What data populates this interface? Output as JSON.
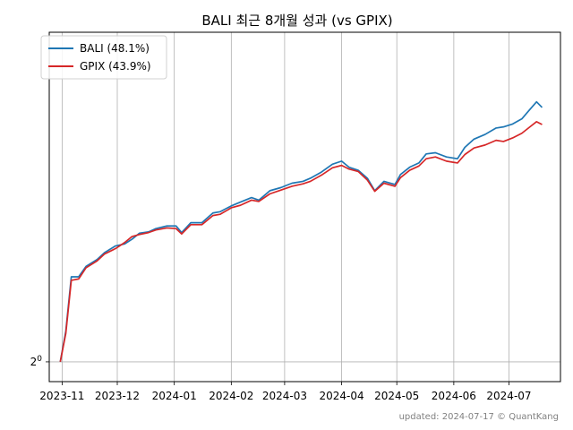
{
  "chart_data": {
    "type": "line",
    "title": "BALI 최근 8개월 성과 (vs GPIX)",
    "xlabel": "",
    "ylabel": "",
    "y_scale": "log2",
    "y_ticks": [
      {
        "value": 1.0,
        "label_base": "2",
        "label_exp": "0"
      }
    ],
    "x_tick_labels": [
      "2023-11",
      "2023-12",
      "2024-01",
      "2024-02",
      "2024-03",
      "2024-04",
      "2024-05",
      "2024-06",
      "2024-07"
    ],
    "x_ticks": [
      "2023-11-01",
      "2023-12-01",
      "2024-01-01",
      "2024-02-01",
      "2024-03-01",
      "2024-04-01",
      "2024-05-01",
      "2024-06-01",
      "2024-07-01"
    ],
    "xlim": [
      "2023-10-25",
      "2024-07-29"
    ],
    "ylim": [
      0.975,
      1.525
    ],
    "grid": true,
    "legend_position": "top-left",
    "series": [
      {
        "name": "BALI (48.1%)",
        "color": "#1f77b4",
        "points": [
          [
            "2023-10-31",
            1.0
          ],
          [
            "2023-11-03",
            1.04
          ],
          [
            "2023-11-06",
            1.115
          ],
          [
            "2023-11-10",
            1.115
          ],
          [
            "2023-11-14",
            1.13
          ],
          [
            "2023-11-20",
            1.14
          ],
          [
            "2023-11-24",
            1.15
          ],
          [
            "2023-11-30",
            1.16
          ],
          [
            "2023-12-05",
            1.163
          ],
          [
            "2023-12-09",
            1.17
          ],
          [
            "2023-12-13",
            1.179
          ],
          [
            "2023-12-18",
            1.181
          ],
          [
            "2023-12-22",
            1.186
          ],
          [
            "2023-12-28",
            1.19
          ],
          [
            "2024-01-02",
            1.19
          ],
          [
            "2024-01-05",
            1.18
          ],
          [
            "2024-01-10",
            1.195
          ],
          [
            "2024-01-16",
            1.195
          ],
          [
            "2024-01-22",
            1.21
          ],
          [
            "2024-01-26",
            1.212
          ],
          [
            "2024-02-01",
            1.221
          ],
          [
            "2024-02-06",
            1.227
          ],
          [
            "2024-02-12",
            1.234
          ],
          [
            "2024-02-16",
            1.23
          ],
          [
            "2024-02-22",
            1.245
          ],
          [
            "2024-02-28",
            1.25
          ],
          [
            "2024-03-05",
            1.257
          ],
          [
            "2024-03-11",
            1.26
          ],
          [
            "2024-03-15",
            1.265
          ],
          [
            "2024-03-21",
            1.275
          ],
          [
            "2024-03-27",
            1.288
          ],
          [
            "2024-04-01",
            1.293
          ],
          [
            "2024-04-05",
            1.283
          ],
          [
            "2024-04-10",
            1.278
          ],
          [
            "2024-04-15",
            1.265
          ],
          [
            "2024-04-19",
            1.245
          ],
          [
            "2024-04-24",
            1.26
          ],
          [
            "2024-04-30",
            1.255
          ],
          [
            "2024-05-03",
            1.271
          ],
          [
            "2024-05-08",
            1.283
          ],
          [
            "2024-05-13",
            1.29
          ],
          [
            "2024-05-17",
            1.305
          ],
          [
            "2024-05-22",
            1.307
          ],
          [
            "2024-05-28",
            1.3
          ],
          [
            "2024-06-03",
            1.297
          ],
          [
            "2024-06-07",
            1.316
          ],
          [
            "2024-06-12",
            1.33
          ],
          [
            "2024-06-18",
            1.338
          ],
          [
            "2024-06-24",
            1.349
          ],
          [
            "2024-06-28",
            1.351
          ],
          [
            "2024-07-03",
            1.356
          ],
          [
            "2024-07-08",
            1.365
          ],
          [
            "2024-07-12",
            1.38
          ],
          [
            "2024-07-16",
            1.395
          ],
          [
            "2024-07-19",
            1.385
          ]
        ]
      },
      {
        "name": "GPIX (43.9%)",
        "color": "#d62728",
        "points": [
          [
            "2023-10-31",
            1.0
          ],
          [
            "2023-11-03",
            1.037
          ],
          [
            "2023-11-06",
            1.11
          ],
          [
            "2023-11-10",
            1.112
          ],
          [
            "2023-11-14",
            1.128
          ],
          [
            "2023-11-20",
            1.138
          ],
          [
            "2023-11-24",
            1.148
          ],
          [
            "2023-11-30",
            1.156
          ],
          [
            "2023-12-05",
            1.165
          ],
          [
            "2023-12-09",
            1.174
          ],
          [
            "2023-12-13",
            1.177
          ],
          [
            "2023-12-18",
            1.18
          ],
          [
            "2023-12-22",
            1.184
          ],
          [
            "2023-12-28",
            1.187
          ],
          [
            "2024-01-02",
            1.186
          ],
          [
            "2024-01-05",
            1.178
          ],
          [
            "2024-01-10",
            1.192
          ],
          [
            "2024-01-16",
            1.192
          ],
          [
            "2024-01-22",
            1.206
          ],
          [
            "2024-01-26",
            1.208
          ],
          [
            "2024-02-01",
            1.218
          ],
          [
            "2024-02-06",
            1.222
          ],
          [
            "2024-02-12",
            1.23
          ],
          [
            "2024-02-16",
            1.228
          ],
          [
            "2024-02-22",
            1.24
          ],
          [
            "2024-02-28",
            1.246
          ],
          [
            "2024-03-05",
            1.252
          ],
          [
            "2024-03-11",
            1.256
          ],
          [
            "2024-03-15",
            1.26
          ],
          [
            "2024-03-21",
            1.27
          ],
          [
            "2024-03-27",
            1.282
          ],
          [
            "2024-04-01",
            1.286
          ],
          [
            "2024-04-05",
            1.28
          ],
          [
            "2024-04-10",
            1.276
          ],
          [
            "2024-04-15",
            1.262
          ],
          [
            "2024-04-19",
            1.244
          ],
          [
            "2024-04-24",
            1.257
          ],
          [
            "2024-04-30",
            1.252
          ],
          [
            "2024-05-03",
            1.266
          ],
          [
            "2024-05-08",
            1.278
          ],
          [
            "2024-05-13",
            1.285
          ],
          [
            "2024-05-17",
            1.297
          ],
          [
            "2024-05-22",
            1.3
          ],
          [
            "2024-05-28",
            1.293
          ],
          [
            "2024-06-03",
            1.29
          ],
          [
            "2024-06-07",
            1.304
          ],
          [
            "2024-06-12",
            1.315
          ],
          [
            "2024-06-18",
            1.32
          ],
          [
            "2024-06-24",
            1.328
          ],
          [
            "2024-06-28",
            1.326
          ],
          [
            "2024-07-03",
            1.332
          ],
          [
            "2024-07-08",
            1.34
          ],
          [
            "2024-07-12",
            1.35
          ],
          [
            "2024-07-16",
            1.36
          ],
          [
            "2024-07-19",
            1.355
          ]
        ]
      }
    ]
  },
  "footer": {
    "text": "updated: 2024-07-17 © QuantKang"
  }
}
